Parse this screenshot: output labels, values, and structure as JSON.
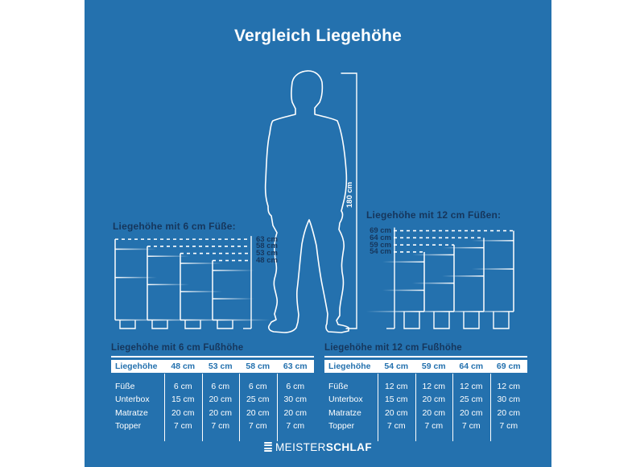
{
  "title": "Vergleich Liegehöhe",
  "figure": {
    "height_label": "180 cm"
  },
  "colors": {
    "background": "#2471ae",
    "navy": "#16365c",
    "line": "#ffffff"
  },
  "diagram": {
    "left_group": {
      "heading": "Liegehöhe mit 6 cm Füße:",
      "foot_cm": 6,
      "beds": [
        {
          "label": "63 cm",
          "total_cm": 63,
          "topper_cm": 7,
          "matratze_cm": 20,
          "unterbox_cm": 30
        },
        {
          "label": "58 cm",
          "total_cm": 58,
          "topper_cm": 7,
          "matratze_cm": 20,
          "unterbox_cm": 25
        },
        {
          "label": "53 cm",
          "total_cm": 53,
          "topper_cm": 7,
          "matratze_cm": 20,
          "unterbox_cm": 20
        },
        {
          "label": "48 cm",
          "total_cm": 48,
          "topper_cm": 7,
          "matratze_cm": 20,
          "unterbox_cm": 15
        }
      ]
    },
    "right_group": {
      "heading": "Liegehöhe mit 12 cm Füßen:",
      "foot_cm": 12,
      "beds": [
        {
          "label": "54 cm",
          "total_cm": 54,
          "topper_cm": 7,
          "matratze_cm": 20,
          "unterbox_cm": 15
        },
        {
          "label": "59 cm",
          "total_cm": 59,
          "topper_cm": 7,
          "matratze_cm": 20,
          "unterbox_cm": 20
        },
        {
          "label": "64 cm",
          "total_cm": 64,
          "topper_cm": 7,
          "matratze_cm": 20,
          "unterbox_cm": 25
        },
        {
          "label": "69 cm",
          "total_cm": 69,
          "topper_cm": 7,
          "matratze_cm": 20,
          "unterbox_cm": 30
        }
      ]
    }
  },
  "tables": [
    {
      "title": "Liegehöhe mit 6 cm Fußhöhe",
      "header": [
        "Liegehöhe",
        "48 cm",
        "53 cm",
        "58 cm",
        "63 cm"
      ],
      "rows": [
        {
          "label": "Füße",
          "values": [
            "6 cm",
            "6 cm",
            "6 cm",
            "6 cm"
          ]
        },
        {
          "label": "Unterbox",
          "values": [
            "15 cm",
            "20 cm",
            "25 cm",
            "30 cm"
          ]
        },
        {
          "label": "Matratze",
          "values": [
            "20 cm",
            "20 cm",
            "20 cm",
            "20 cm"
          ]
        },
        {
          "label": "Topper",
          "values": [
            "7 cm",
            "7 cm",
            "7 cm",
            "7 cm"
          ]
        }
      ]
    },
    {
      "title": "Liegehöhe mit 12 cm Fußhöhe",
      "header": [
        "Liegehöhe",
        "54 cm",
        "59 cm",
        "64 cm",
        "69 cm"
      ],
      "rows": [
        {
          "label": "Füße",
          "values": [
            "12 cm",
            "12 cm",
            "12 cm",
            "12 cm"
          ]
        },
        {
          "label": "Unterbox",
          "values": [
            "15 cm",
            "20 cm",
            "25 cm",
            "30 cm"
          ]
        },
        {
          "label": "Matratze",
          "values": [
            "20 cm",
            "20 cm",
            "20 cm",
            "20 cm"
          ]
        },
        {
          "label": "Topper",
          "values": [
            "7 cm",
            "7 cm",
            "7 cm",
            "7 cm"
          ]
        }
      ]
    }
  ],
  "logo": {
    "text_regular": "MEISTER",
    "text_bold": "SCHLAF"
  }
}
